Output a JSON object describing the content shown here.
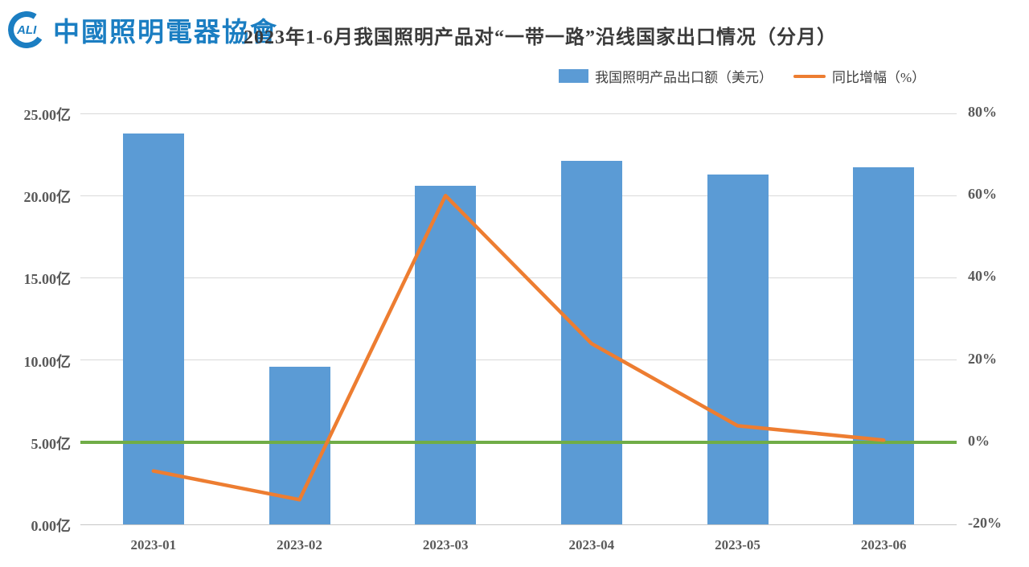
{
  "header": {
    "logo_circle_text": "ALI",
    "org_name": "中國照明電器協會",
    "title": "2023年1-6月我国照明产品对“一带一路”沿线国家出口情况（分月）"
  },
  "legend": {
    "bar_label": "我国照明产品出口额（美元）",
    "line_label": "同比增幅（%）"
  },
  "colors": {
    "bar": "#5b9bd5",
    "line": "#ed7d31",
    "zero_line": "#70ad47",
    "gridline": "#d9d9d9",
    "text": "#595959",
    "title_text": "#3a3a3a",
    "logo_blue": "#1b7ec2"
  },
  "chart_data": {
    "type": "bar",
    "subtype": "combo-bar-line",
    "title": "2023年1-6月我国照明产品对“一带一路”沿线国家出口情况（分月）",
    "categories": [
      "2023-01",
      "2023-02",
      "2023-03",
      "2023-04",
      "2023-05",
      "2023-06"
    ],
    "series": [
      {
        "name": "我国照明产品出口额（美元）",
        "type": "bar",
        "axis": "left",
        "unit": "亿美元",
        "values": [
          23.8,
          9.6,
          20.6,
          22.1,
          21.3,
          21.7
        ]
      },
      {
        "name": "同比增幅（%）",
        "type": "line",
        "axis": "right",
        "unit": "%",
        "values": [
          -7,
          -14,
          60,
          24,
          4,
          0.5
        ]
      }
    ],
    "left_axis": {
      "min": 0,
      "max": 25,
      "ticks": [
        "0.00亿",
        "5.00亿",
        "10.00亿",
        "15.00亿",
        "20.00亿",
        "25.00亿"
      ]
    },
    "right_axis": {
      "min": -20,
      "max": 80,
      "ticks": [
        "-20%",
        "0%",
        "20%",
        "40%",
        "60%",
        "80%"
      ]
    },
    "zero_line": {
      "axis": "right",
      "value": 0
    },
    "grid": true,
    "legend_position": "top-right"
  }
}
